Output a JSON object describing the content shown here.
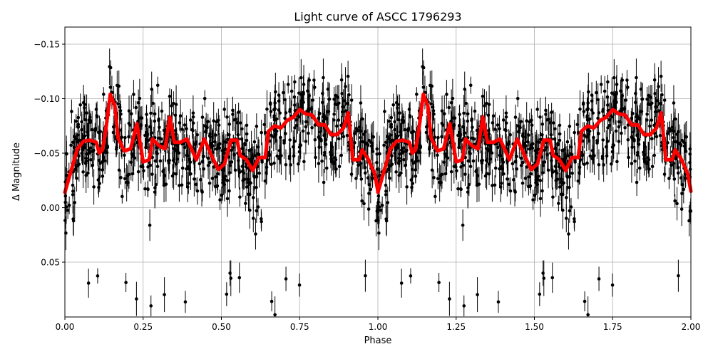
{
  "chart_data": {
    "type": "scatter",
    "title": "Light curve of ASCC 1796293",
    "xlabel": "Phase",
    "ylabel": "Δ Magnitude",
    "xlim": [
      0,
      2
    ],
    "ylim": [
      0.1003,
      -0.1657
    ],
    "y_inverted": true,
    "grid": true,
    "x_ticks": [
      "0.00",
      "0.25",
      "0.50",
      "0.75",
      "1.00",
      "1.25",
      "1.50",
      "1.75",
      "2.00"
    ],
    "x_tick_values": [
      0,
      0.25,
      0.5,
      0.75,
      1.0,
      1.25,
      1.5,
      1.75,
      2.0
    ],
    "y_ticks": [
      "−0.15",
      "−0.10",
      "−0.05",
      "0.00",
      "0.05"
    ],
    "y_tick_values": [
      -0.15,
      -0.1,
      -0.05,
      0.0,
      0.05
    ],
    "colors": {
      "points": "#000000",
      "model": "#ff0000",
      "grid": "#b0b0b0"
    },
    "series": [
      {
        "type": "errorbar-scatter",
        "color": "#000000",
        "description_note": "dense phase-folded photometry with error bars, scattered around the model curve, repeated for phases 1–2"
      },
      {
        "type": "line",
        "color": "#ff0000",
        "period_repeated": true,
        "x": [
          0.0,
          0.02,
          0.04,
          0.06,
          0.08,
          0.1,
          0.11,
          0.12,
          0.13,
          0.145,
          0.16,
          0.17,
          0.19,
          0.21,
          0.23,
          0.25,
          0.27,
          0.28,
          0.3,
          0.32,
          0.335,
          0.35,
          0.37,
          0.39,
          0.42,
          0.445,
          0.47,
          0.49,
          0.51,
          0.53,
          0.55,
          0.56,
          0.58,
          0.6,
          0.62,
          0.64,
          0.65,
          0.67,
          0.69,
          0.71,
          0.73,
          0.75,
          0.77,
          0.79,
          0.81,
          0.83,
          0.85,
          0.87,
          0.89,
          0.905,
          0.92,
          0.94,
          0.95,
          0.97,
          0.99,
          1.0
        ],
        "y": [
          -0.014,
          -0.034,
          -0.054,
          -0.061,
          -0.062,
          -0.06,
          -0.05,
          -0.053,
          -0.07,
          -0.104,
          -0.093,
          -0.064,
          -0.052,
          -0.054,
          -0.077,
          -0.042,
          -0.044,
          -0.063,
          -0.057,
          -0.054,
          -0.083,
          -0.06,
          -0.06,
          -0.063,
          -0.044,
          -0.063,
          -0.047,
          -0.035,
          -0.04,
          -0.062,
          -0.062,
          -0.048,
          -0.044,
          -0.034,
          -0.046,
          -0.046,
          -0.07,
          -0.075,
          -0.073,
          -0.08,
          -0.083,
          -0.09,
          -0.086,
          -0.085,
          -0.076,
          -0.076,
          -0.067,
          -0.067,
          -0.073,
          -0.087,
          -0.044,
          -0.044,
          -0.053,
          -0.044,
          -0.031,
          -0.015
        ]
      }
    ]
  }
}
